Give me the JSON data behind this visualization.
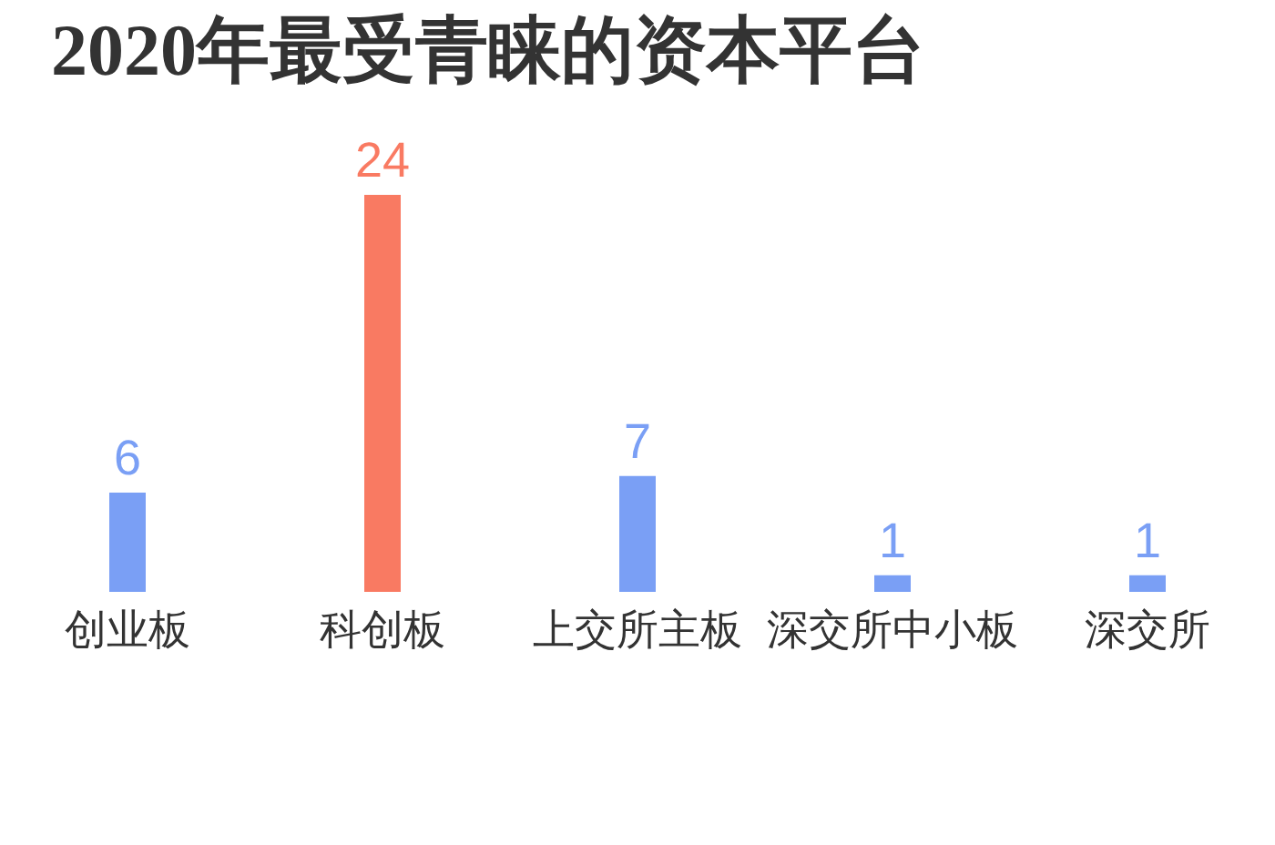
{
  "chart_data": {
    "type": "bar",
    "title": "2020年最受青睐的资本平台",
    "categories": [
      "创业板",
      "科创板",
      "上交所主板",
      "深交所中小板",
      "深交所"
    ],
    "values": [
      6,
      24,
      7,
      1,
      1
    ],
    "colors": [
      "#7a9ff5",
      "#f97a62",
      "#7a9ff5",
      "#7a9ff5",
      "#7a9ff5"
    ],
    "data_labels": true,
    "tick_labels": "x"
  }
}
